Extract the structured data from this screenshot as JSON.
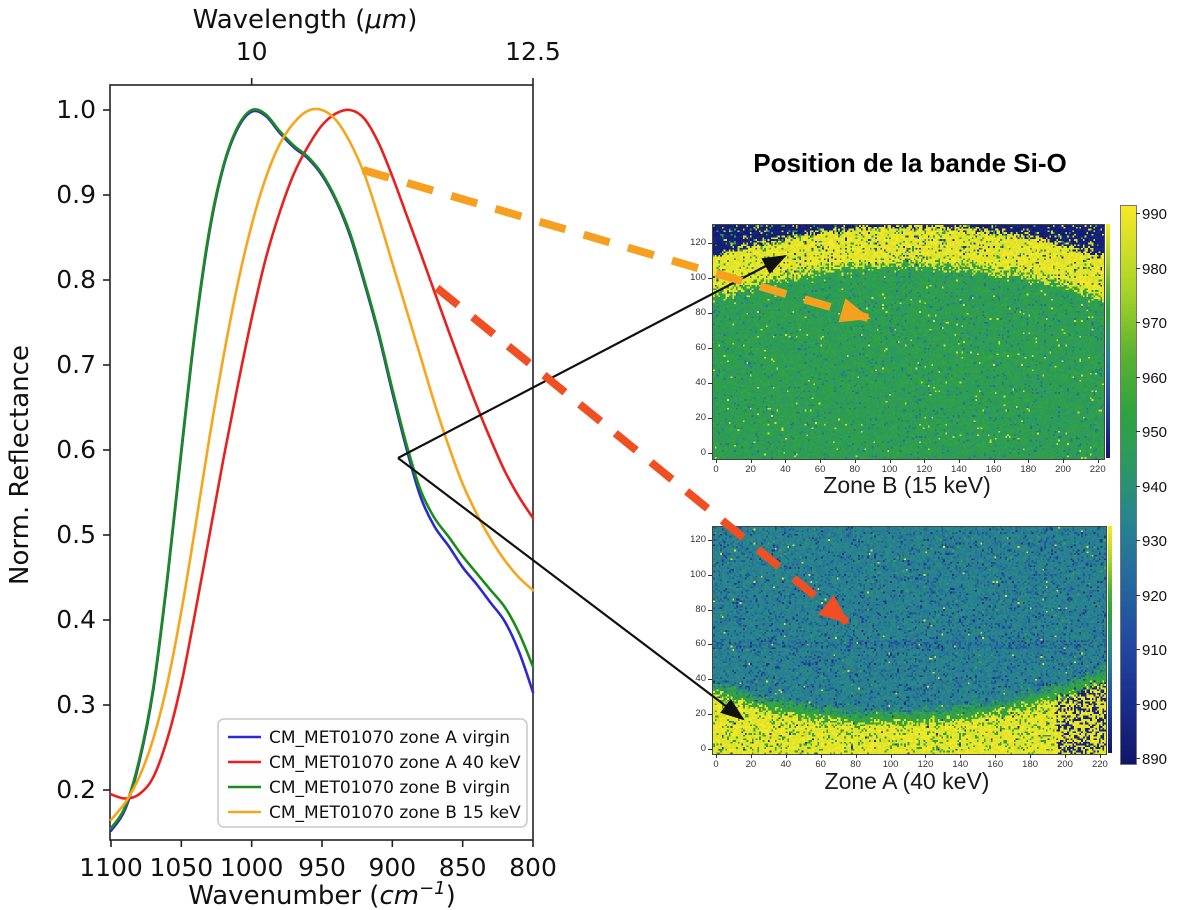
{
  "title": "Position de la bande Si-O",
  "spectra": {
    "top_axis": {
      "label_prefix": "Wavelength (",
      "label_unit": "μm",
      "label_suffix": ")",
      "ticks": [
        {
          "label": "10",
          "wavenumber": 1000
        },
        {
          "label": "12.5",
          "wavenumber": 800
        }
      ]
    },
    "bottom_axis": {
      "label_prefix": "Wavenumber (",
      "label_unit": "cm",
      "label_exponent": "−1",
      "label_suffix": ")",
      "ticks": [
        1100,
        1050,
        1000,
        950,
        900,
        850,
        800
      ]
    },
    "y_axis": {
      "label": "Norm. Reflectance",
      "ticks": [
        "1.0",
        "0.9",
        "0.8",
        "0.7",
        "0.6",
        "0.5",
        "0.4",
        "0.3",
        "0.2"
      ]
    },
    "legend": [
      {
        "label": "CM_MET01070 zone A virgin",
        "color": "#2a2ad0"
      },
      {
        "label": "CM_MET01070 zone A 40 keV",
        "color": "#e8201f"
      },
      {
        "label": "CM_MET01070 zone B virgin",
        "color": "#1b8c1b"
      },
      {
        "label": "CM_MET01070 zone B 15 keV",
        "color": "#f6a51c"
      }
    ]
  },
  "maps": {
    "zone_b": {
      "label": "Zone B (15 keV)",
      "x_ticks": [
        0,
        20,
        40,
        60,
        80,
        100,
        120,
        140,
        160,
        180,
        200,
        220
      ],
      "y_ticks": [
        0,
        20,
        40,
        60,
        80,
        100,
        120
      ]
    },
    "zone_a": {
      "label": "Zone A (40 keV)",
      "x_ticks": [
        0,
        20,
        40,
        60,
        80,
        100,
        120,
        140,
        160,
        180,
        200,
        220
      ],
      "y_ticks": [
        0,
        20,
        40,
        60,
        80,
        100,
        120
      ]
    },
    "colorbar": {
      "ticks": [
        990,
        980,
        970,
        960,
        950,
        940,
        930,
        920,
        910,
        900,
        890
      ]
    }
  },
  "annotations": [
    {
      "type": "dashed-arrow",
      "color": "#f5a01e",
      "from": "zone B 15 keV spectrum shoulder",
      "to": "Zone B (15 keV) map interior"
    },
    {
      "type": "dashed-arrow",
      "color": "#f04e23",
      "from": "zone A 40 keV spectrum shoulder",
      "to": "Zone A (40 keV) map interior"
    },
    {
      "type": "thin-arrow",
      "color": "#111111",
      "from": "virgin spectra shoulder at 0.6",
      "to": "Zone B map yellow rim"
    },
    {
      "type": "thin-arrow",
      "color": "#111111",
      "from": "virgin spectra shoulder at 0.6",
      "to": "Zone A map yellow rim"
    }
  ],
  "chart_data": [
    {
      "type": "line",
      "title": "",
      "xlabel": "Wavenumber (cm⁻¹)",
      "xlabel_top": "Wavelength (μm)",
      "ylabel": "Norm. Reflectance",
      "xlim": [
        1100,
        800
      ],
      "ylim": [
        0.14,
        1.03
      ],
      "x_axis_reversed": true,
      "legend_position": "lower right",
      "x": [
        1100,
        1090,
        1080,
        1070,
        1060,
        1050,
        1040,
        1030,
        1020,
        1010,
        1000,
        990,
        980,
        970,
        960,
        950,
        940,
        930,
        920,
        910,
        900,
        890,
        880,
        870,
        860,
        850,
        840,
        830,
        820,
        810,
        800
      ],
      "series": [
        {
          "name": "CM_MET01070 zone A virgin",
          "color": "#2a2ad0",
          "peak_wavenumber": 997,
          "values": [
            0.152,
            0.177,
            0.232,
            0.317,
            0.447,
            0.597,
            0.742,
            0.857,
            0.933,
            0.978,
            0.998,
            0.993,
            0.973,
            0.956,
            0.943,
            0.923,
            0.893,
            0.852,
            0.797,
            0.737,
            0.668,
            0.602,
            0.545,
            0.51,
            0.487,
            0.462,
            0.442,
            0.42,
            0.398,
            0.363,
            0.315
          ]
        },
        {
          "name": "CM_MET01070 zone A 40 keV",
          "color": "#e8201f",
          "peak_wavenumber": 930,
          "values": [
            0.195,
            0.19,
            0.195,
            0.215,
            0.26,
            0.325,
            0.41,
            0.5,
            0.59,
            0.675,
            0.755,
            0.825,
            0.88,
            0.925,
            0.957,
            0.982,
            0.996,
            1.0,
            0.99,
            0.962,
            0.922,
            0.877,
            0.832,
            0.786,
            0.74,
            0.695,
            0.652,
            0.612,
            0.575,
            0.545,
            0.52
          ]
        },
        {
          "name": "CM_MET01070 zone B virgin",
          "color": "#1b8c1b",
          "peak_wavenumber": 997,
          "values": [
            0.155,
            0.18,
            0.235,
            0.32,
            0.45,
            0.6,
            0.745,
            0.86,
            0.935,
            0.98,
            1.0,
            0.995,
            0.975,
            0.958,
            0.945,
            0.925,
            0.895,
            0.855,
            0.8,
            0.74,
            0.672,
            0.607,
            0.553,
            0.52,
            0.498,
            0.475,
            0.455,
            0.435,
            0.415,
            0.385,
            0.345
          ]
        },
        {
          "name": "CM_MET01070 zone B 15 keV",
          "color": "#f6a51c",
          "peak_wavenumber": 952,
          "values": [
            0.165,
            0.185,
            0.215,
            0.26,
            0.325,
            0.41,
            0.51,
            0.615,
            0.71,
            0.795,
            0.865,
            0.92,
            0.96,
            0.985,
            0.999,
            1.0,
            0.988,
            0.962,
            0.925,
            0.875,
            0.82,
            0.765,
            0.71,
            0.655,
            0.605,
            0.56,
            0.525,
            0.495,
            0.47,
            0.45,
            0.435
          ]
        }
      ]
    },
    {
      "type": "heatmap",
      "title": "Zone B (15 keV)",
      "xlim": [
        0,
        220
      ],
      "ylim": [
        0,
        131
      ],
      "value_range": [
        890,
        990
      ],
      "regions": {
        "body": {
          "value": 950,
          "color": "green"
        },
        "top_arc_band": {
          "value": 988,
          "color": "yellow"
        },
        "top_corners": {
          "value": 891,
          "color": "dark navy"
        }
      }
    },
    {
      "type": "heatmap",
      "title": "Zone A (40 keV)",
      "xlim": [
        0,
        220
      ],
      "ylim": [
        0,
        129
      ],
      "value_range": [
        890,
        990
      ],
      "regions": {
        "body": {
          "value": 933,
          "color": "teal blue"
        },
        "bottom_arc_band": {
          "value": 988,
          "color": "yellow"
        },
        "bottom_right_corner": {
          "value": 895,
          "color": "navy speckles"
        }
      }
    },
    {
      "type": "colorbar",
      "ticks": [
        990,
        980,
        970,
        960,
        950,
        940,
        930,
        920,
        910,
        900,
        890
      ],
      "top_color": "#f6e926",
      "bottom_color": "#101c69"
    }
  ]
}
